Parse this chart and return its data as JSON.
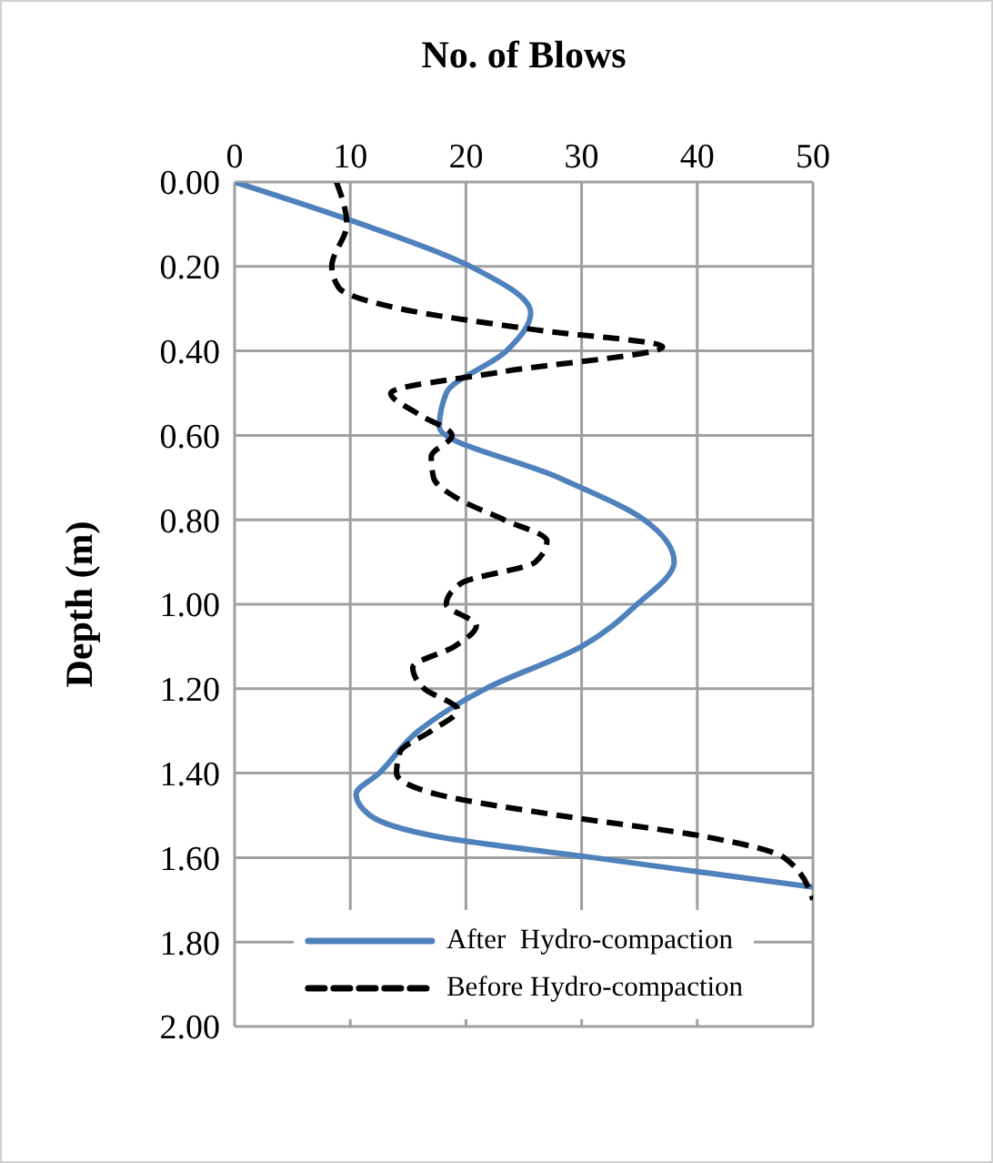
{
  "chart_data": {
    "type": "line",
    "orientation": "horizontal",
    "xlabel": "No. of Blows",
    "ylabel": "Depth (m)",
    "xlim": [
      0,
      50
    ],
    "xticks": [
      0,
      10,
      20,
      30,
      40,
      50
    ],
    "ylim": [
      2,
      0
    ],
    "yticks": [
      {
        "value": 0,
        "label": "0.00"
      },
      {
        "value": 0.2,
        "label": "0.20"
      },
      {
        "value": 0.4,
        "label": "0.40"
      },
      {
        "value": 0.6,
        "label": "0.60"
      },
      {
        "value": 0.8,
        "label": "0.80"
      },
      {
        "value": 1,
        "label": "1.00"
      },
      {
        "value": 1.2,
        "label": "1.20"
      },
      {
        "value": 1.4,
        "label": "1.40"
      },
      {
        "value": 1.6,
        "label": "1.60"
      },
      {
        "value": 1.8,
        "label": "1.80"
      },
      {
        "value": 2,
        "label": "2.00"
      }
    ],
    "grid": true,
    "legend": "bottom",
    "marker": "none",
    "series": [
      {
        "name": "After  Hydro-compaction",
        "color": "#4f81bd",
        "line_style": "solid",
        "x": [
          0,
          0.1,
          0.2,
          0.31,
          0.4,
          0.5,
          0.58,
          0.7,
          0.8,
          0.9,
          1.0,
          1.1,
          1.2,
          1.3,
          1.4,
          1.45,
          1.5,
          1.55,
          1.6,
          1.67
        ],
        "values": [
          0,
          11,
          20.4,
          25.6,
          23.5,
          18.3,
          17.7,
          28,
          35.4,
          38,
          34.8,
          30,
          21.7,
          15.9,
          12.5,
          10.5,
          11.7,
          17.5,
          31,
          50
        ]
      },
      {
        "name": "Before Hydro-compaction",
        "color": "#000000",
        "line_style": "dashed",
        "x": [
          0,
          0.1,
          0.2,
          0.25,
          0.3,
          0.35,
          0.39,
          0.45,
          0.5,
          0.55,
          0.6,
          0.65,
          0.7,
          0.75,
          0.8,
          0.85,
          0.9,
          0.95,
          1.0,
          1.05,
          1.1,
          1.15,
          1.2,
          1.25,
          1.3,
          1.35,
          1.4,
          1.45,
          1.5,
          1.55,
          1.6,
          1.7
        ],
        "values": [
          8.8,
          9.7,
          8.4,
          9,
          14.3,
          26,
          37,
          23,
          13.5,
          15.9,
          18.8,
          17,
          17.2,
          19.3,
          23.3,
          27,
          26,
          19.6,
          18.3,
          20.9,
          19,
          15.4,
          16.4,
          19.3,
          17,
          14.3,
          14,
          17.5,
          28,
          40.6,
          47.5,
          50
        ]
      }
    ]
  }
}
